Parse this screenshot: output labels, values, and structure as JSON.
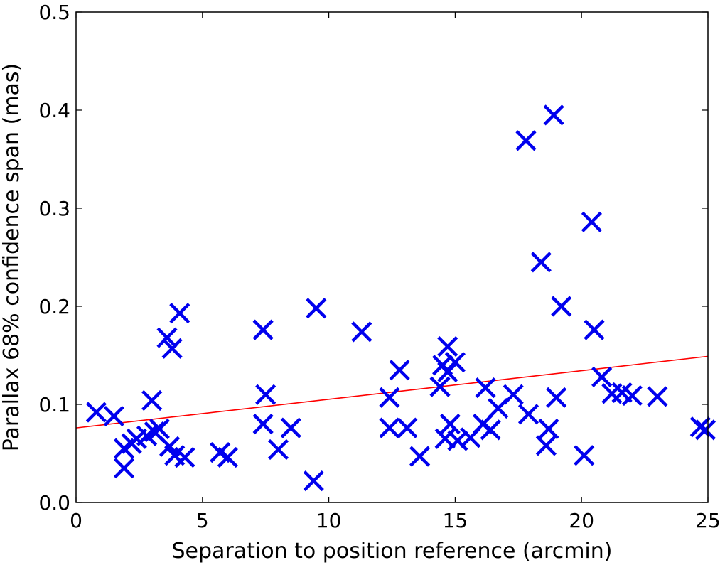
{
  "chart_data": {
    "type": "scatter",
    "title": "",
    "xlabel": "Separation to position reference (arcmin)",
    "ylabel": "Parallax 68% confidence span (mas)",
    "xlim": [
      0,
      25
    ],
    "ylim": [
      0.0,
      0.5
    ],
    "xticks": [
      0,
      5,
      10,
      15,
      20,
      25
    ],
    "xtick_labels": [
      "0",
      "5",
      "10",
      "15",
      "20",
      "25"
    ],
    "yticks": [
      0.0,
      0.1,
      0.2,
      0.3,
      0.4,
      0.5
    ],
    "ytick_labels": [
      "0.0",
      "0.1",
      "0.2",
      "0.3",
      "0.4",
      "0.5"
    ],
    "grid": false,
    "legend": "none",
    "marker": "x",
    "marker_color": "#0000ee",
    "fit_line_color": "#ff0000",
    "series": [
      {
        "points": [
          [
            0.8,
            0.092
          ],
          [
            1.5,
            0.088
          ],
          [
            1.9,
            0.035
          ],
          [
            1.9,
            0.055
          ],
          [
            2.2,
            0.06
          ],
          [
            2.4,
            0.065
          ],
          [
            2.8,
            0.068
          ],
          [
            3.0,
            0.104
          ],
          [
            3.1,
            0.072
          ],
          [
            3.3,
            0.075
          ],
          [
            3.6,
            0.168
          ],
          [
            3.8,
            0.157
          ],
          [
            3.7,
            0.057
          ],
          [
            3.9,
            0.048
          ],
          [
            4.1,
            0.193
          ],
          [
            4.3,
            0.046
          ],
          [
            5.7,
            0.051
          ],
          [
            6.0,
            0.046
          ],
          [
            7.4,
            0.176
          ],
          [
            7.5,
            0.11
          ],
          [
            7.4,
            0.08
          ],
          [
            8.0,
            0.054
          ],
          [
            8.5,
            0.076
          ],
          [
            9.4,
            0.022
          ],
          [
            9.5,
            0.198
          ],
          [
            11.3,
            0.174
          ],
          [
            12.4,
            0.107
          ],
          [
            12.4,
            0.076
          ],
          [
            12.8,
            0.135
          ],
          [
            13.1,
            0.076
          ],
          [
            13.6,
            0.047
          ],
          [
            14.4,
            0.118
          ],
          [
            14.5,
            0.14
          ],
          [
            14.6,
            0.065
          ],
          [
            14.7,
            0.159
          ],
          [
            14.7,
            0.133
          ],
          [
            14.8,
            0.08
          ],
          [
            15.0,
            0.143
          ],
          [
            15.1,
            0.063
          ],
          [
            15.6,
            0.066
          ],
          [
            16.1,
            0.08
          ],
          [
            16.2,
            0.117
          ],
          [
            16.4,
            0.074
          ],
          [
            16.7,
            0.096
          ],
          [
            17.3,
            0.11
          ],
          [
            17.8,
            0.369
          ],
          [
            17.9,
            0.09
          ],
          [
            18.4,
            0.245
          ],
          [
            18.6,
            0.058
          ],
          [
            18.7,
            0.075
          ],
          [
            18.9,
            0.395
          ],
          [
            19.0,
            0.107
          ],
          [
            19.2,
            0.2
          ],
          [
            20.1,
            0.048
          ],
          [
            20.4,
            0.286
          ],
          [
            20.5,
            0.176
          ],
          [
            20.8,
            0.128
          ],
          [
            21.2,
            0.111
          ],
          [
            21.6,
            0.112
          ],
          [
            22.0,
            0.109
          ],
          [
            23.0,
            0.108
          ],
          [
            24.7,
            0.077
          ],
          [
            24.9,
            0.074
          ]
        ]
      }
    ],
    "fit_line": {
      "x": [
        0,
        25
      ],
      "y": [
        0.076,
        0.149
      ]
    }
  }
}
